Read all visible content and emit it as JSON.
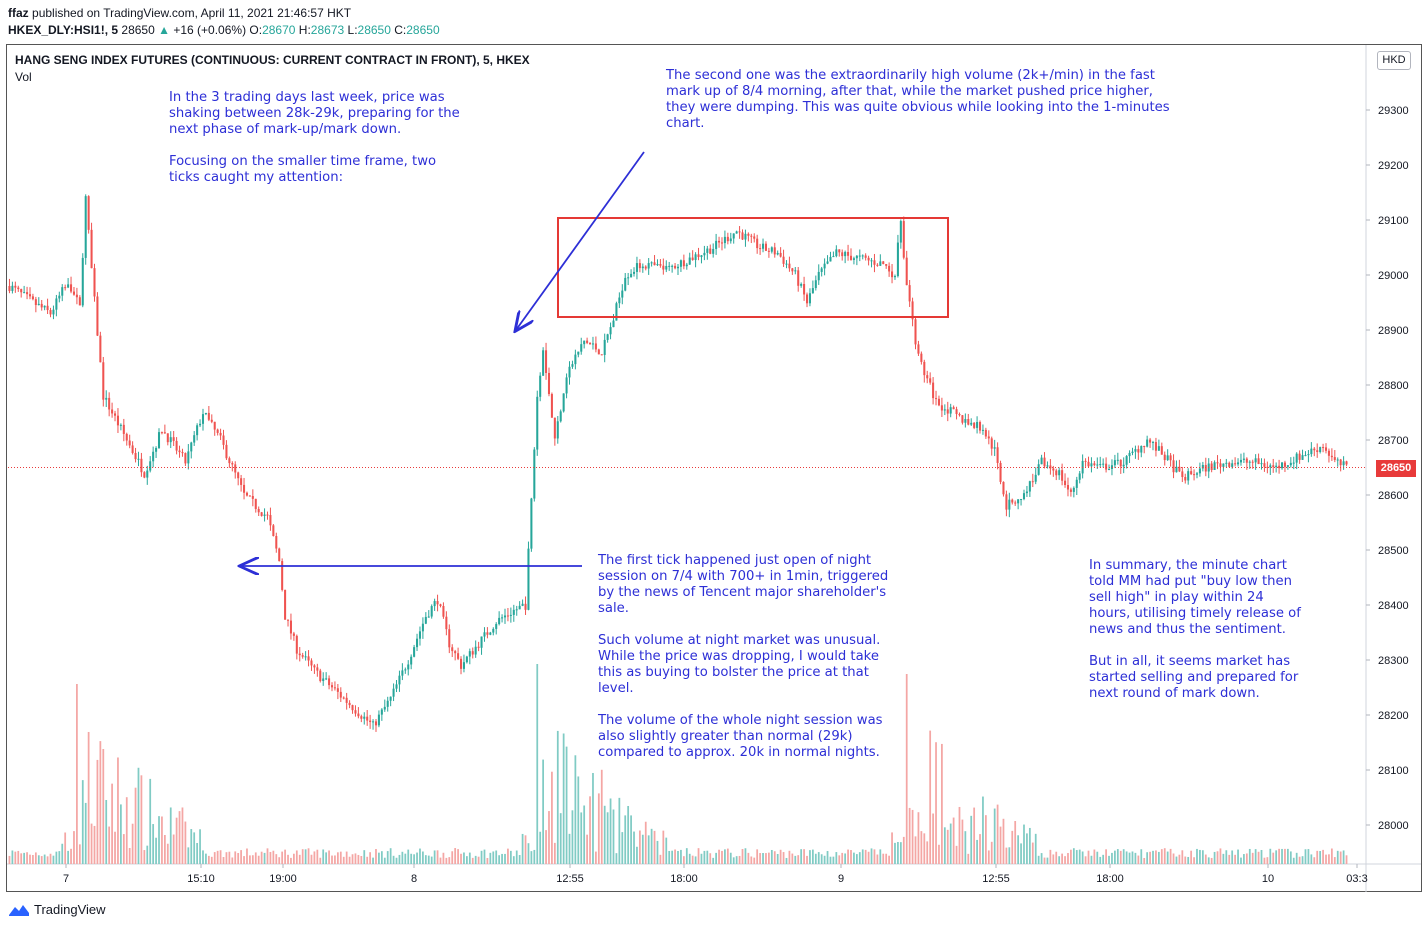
{
  "header": {
    "publisher": "ffaz",
    "published_text": "published on TradingView.com, April 11, 2021 21:46:57 HKT",
    "symbol": "HKEX_DLY:HSI1!, 5",
    "last": "28650",
    "change": "+16 (+0.06%)",
    "ohlc_labels": [
      "O:",
      "H:",
      "L:",
      "C:"
    ],
    "ohlc_values": [
      "28670",
      "28673",
      "28650",
      "28650"
    ]
  },
  "chart_title": "HANG SENG INDEX FUTURES (CONTINUOUS: CURRENT CONTRACT IN FRONT), 5, HKEX",
  "vol_label": "Vol",
  "currency": "HKD",
  "price_tag": "28650",
  "brand": "TradingView",
  "colors": {
    "up": "#26a69a",
    "down": "#ef5350",
    "annotation": "#2d2fd6",
    "box": "#e53935",
    "last_price": "#e83a3a"
  },
  "notes": {
    "n1": "In the 3 trading days last week, price was\nshaking between 28k-29k, preparing for the\nnext phase of mark-up/mark down.\n\nFocusing on the smaller time frame, two\nticks caught my attention:",
    "n2": "The second one was the extraordinarily high volume (2k+/min) in the fast\nmark up of 8/4 morning, after that, while the market pushed price higher,\nthey were dumping. This was quite obvious while looking into the 1-minutes\nchart.",
    "n3": "The first tick happened just open of night\nsession on 7/4 with 700+ in 1min, triggered\nby the news of Tencent major shareholder's\nsale.\n\nSuch volume at night market was unusual.\nWhile the price was dropping, I would take\nthis as buying to bolster the price at that\nlevel.\n\nThe volume of the whole night session was\nalso slightly greater than normal (29k)\ncompared to approx. 20k in normal nights.",
    "n4": "In summary, the minute chart\ntold MM had put \"buy low then\nsell high\" in play within 24\nhours, utilising timely release of\nnews and thus the sentiment.\n\nBut in all, it seems market has\nstarted selling and prepared for\nnext round of mark down."
  },
  "chart_data": {
    "type": "candlestick",
    "y_ticks": [
      28000,
      28100,
      28200,
      28300,
      28400,
      28500,
      28600,
      28700,
      28800,
      28900,
      29000,
      29100,
      29200,
      29300
    ],
    "x_ticks": [
      "7",
      "15:10",
      "19:00",
      "8",
      "12:55",
      "18:00",
      "9",
      "12:55",
      "18:00",
      "10",
      "03:3"
    ],
    "ylim": [
      27940,
      29440
    ],
    "last_price": 28650,
    "price_path": [
      [
        0,
        28980
      ],
      [
        8,
        28950
      ],
      [
        14,
        28930
      ],
      [
        20,
        28990
      ],
      [
        24,
        28940
      ],
      [
        26,
        29140
      ],
      [
        28,
        29010
      ],
      [
        32,
        28780
      ],
      [
        40,
        28700
      ],
      [
        46,
        28640
      ],
      [
        52,
        28720
      ],
      [
        60,
        28660
      ],
      [
        66,
        28750
      ],
      [
        72,
        28700
      ],
      [
        80,
        28600
      ],
      [
        88,
        28560
      ],
      [
        92,
        28480
      ],
      [
        94,
        28380
      ],
      [
        98,
        28320
      ],
      [
        104,
        28280
      ],
      [
        110,
        28250
      ],
      [
        118,
        28210
      ],
      [
        124,
        28180
      ],
      [
        130,
        28230
      ],
      [
        136,
        28300
      ],
      [
        142,
        28380
      ],
      [
        146,
        28410
      ],
      [
        150,
        28330
      ],
      [
        154,
        28290
      ],
      [
        160,
        28330
      ],
      [
        166,
        28370
      ],
      [
        172,
        28390
      ],
      [
        176,
        28400
      ],
      [
        180,
        28780
      ],
      [
        182,
        28870
      ],
      [
        186,
        28700
      ],
      [
        190,
        28820
      ],
      [
        196,
        28880
      ],
      [
        202,
        28860
      ],
      [
        206,
        28920
      ],
      [
        210,
        29000
      ],
      [
        216,
        29020
      ],
      [
        224,
        29010
      ],
      [
        232,
        29030
      ],
      [
        240,
        29050
      ],
      [
        248,
        29080
      ],
      [
        256,
        29050
      ],
      [
        262,
        29040
      ],
      [
        268,
        29000
      ],
      [
        272,
        28950
      ],
      [
        276,
        29000
      ],
      [
        282,
        29040
      ],
      [
        290,
        29030
      ],
      [
        298,
        29020
      ],
      [
        302,
        29000
      ],
      [
        304,
        29100
      ],
      [
        306,
        28980
      ],
      [
        310,
        28850
      ],
      [
        316,
        28770
      ],
      [
        324,
        28740
      ],
      [
        332,
        28720
      ],
      [
        336,
        28680
      ],
      [
        340,
        28580
      ],
      [
        346,
        28600
      ],
      [
        352,
        28660
      ],
      [
        358,
        28640
      ],
      [
        362,
        28600
      ],
      [
        366,
        28660
      ],
      [
        372,
        28650
      ],
      [
        380,
        28660
      ],
      [
        388,
        28700
      ],
      [
        394,
        28670
      ],
      [
        400,
        28630
      ],
      [
        408,
        28650
      ],
      [
        416,
        28660
      ],
      [
        424,
        28660
      ],
      [
        432,
        28650
      ],
      [
        440,
        28670
      ],
      [
        448,
        28690
      ],
      [
        452,
        28660
      ],
      [
        456,
        28650
      ]
    ],
    "volume_spikes": [
      {
        "bar": 23,
        "volume": 0.9
      },
      {
        "bar": 180,
        "volume": 1.0
      },
      {
        "bar": 306,
        "volume": 0.95
      }
    ]
  }
}
